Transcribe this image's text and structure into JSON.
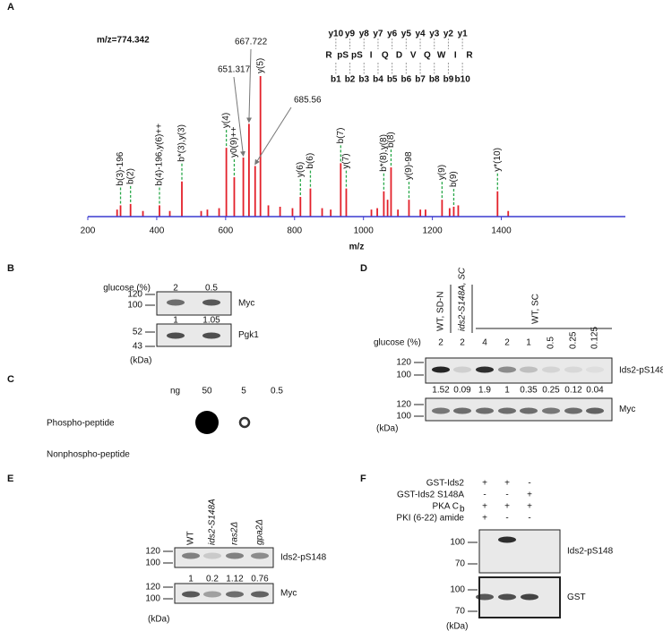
{
  "panel_labels": [
    "A",
    "B",
    "C",
    "D",
    "E",
    "F"
  ],
  "chart_data": {
    "type": "bar",
    "annotation": "m/z=774.342",
    "x_label": "m/z",
    "xlim": [
      200,
      1760
    ],
    "xticks": [
      200,
      400,
      600,
      800,
      1000,
      1200,
      1400
    ],
    "ylim": [
      0,
      100
    ],
    "color": "#e3202a",
    "axis_color": "#3a3acf",
    "label_line_color": "#2aa84a",
    "x": [
      285,
      295,
      324,
      360,
      408,
      438,
      473,
      529,
      547,
      581,
      602,
      625,
      651.317,
      667.722,
      685.56,
      701,
      724,
      758,
      794,
      817,
      846,
      880,
      905,
      934,
      950,
      1023,
      1040,
      1059,
      1070,
      1080,
      1100,
      1132,
      1165,
      1180,
      1228,
      1250,
      1262,
      1275,
      1389,
      1420
    ],
    "values": [
      5,
      8,
      9,
      4,
      8,
      4,
      25,
      4,
      5,
      6,
      49,
      28,
      42,
      66,
      36,
      100,
      8,
      7,
      6,
      14,
      20,
      6,
      5,
      38,
      20,
      5,
      6,
      18,
      12,
      35,
      5,
      12,
      5,
      5,
      12,
      6,
      7,
      8,
      18,
      4
    ],
    "peak_labels": [
      {
        "x": 295,
        "label": "b(3)-196"
      },
      {
        "x": 324,
        "label": "b(2)"
      },
      {
        "x": 408,
        "label": "b(4)-196,y(6)++"
      },
      {
        "x": 473,
        "label": "b*(3),y(3)"
      },
      {
        "x": 602,
        "label": "y(4)"
      },
      {
        "x": 625,
        "label": "y0(9)++"
      },
      {
        "x": 701,
        "label": "y(5)"
      },
      {
        "x": 817,
        "label": "y(6)"
      },
      {
        "x": 846,
        "label": "b(6)"
      },
      {
        "x": 934,
        "label": "b(7)"
      },
      {
        "x": 950,
        "label": "y(7)"
      },
      {
        "x": 1059,
        "label": "b*(8),y(8)"
      },
      {
        "x": 1080,
        "label": "b(8)"
      },
      {
        "x": 1132,
        "label": "y(9)-98"
      },
      {
        "x": 1228,
        "label": "y(9)"
      },
      {
        "x": 1262,
        "label": "b(9)"
      },
      {
        "x": 1389,
        "label": "y*(10)"
      }
    ],
    "callouts": [
      651.317,
      667.722,
      685.56
    ]
  },
  "sequence": {
    "residues": [
      {
        "text": "R",
        "color": "#000000"
      },
      {
        "text": "pS",
        "color": "#e3202a"
      },
      {
        "text": "pS",
        "color": "#e3202a"
      },
      {
        "text": "I",
        "color": "#000000"
      },
      {
        "text": "Q",
        "color": "#000000"
      },
      {
        "text": "D",
        "color": "#000000"
      },
      {
        "text": "V",
        "color": "#000000"
      },
      {
        "text": "Q",
        "color": "#000000"
      },
      {
        "text": "W",
        "color": "#000000"
      },
      {
        "text": "I",
        "color": "#000000"
      },
      {
        "text": "R",
        "color": "#000000"
      }
    ],
    "y_ions": [
      "y10",
      "y9",
      "y8",
      "y7",
      "y6",
      "y5",
      "y4",
      "y3",
      "y2",
      "y1"
    ],
    "y_observed": [
      true,
      true,
      true,
      true,
      true,
      true,
      true,
      true,
      false,
      false
    ],
    "b_ions": [
      "b1",
      "b2",
      "b3",
      "b4",
      "b5",
      "b6",
      "b7",
      "b8",
      "b9",
      "b10"
    ],
    "b_observed": [
      false,
      true,
      true,
      true,
      false,
      true,
      true,
      true,
      true,
      false
    ]
  },
  "panel_b": {
    "variable_label": "glucose (%)",
    "lanes": [
      2,
      0.5
    ],
    "unit": "(kDa)",
    "blots": [
      {
        "markers": [
          120,
          100
        ],
        "target": "Myc",
        "quantification": [
          1,
          1.05
        ]
      },
      {
        "markers": [
          52,
          43
        ],
        "target": "Pgk1"
      }
    ]
  },
  "panel_c": {
    "unit_label": "ng",
    "amounts": [
      50,
      5,
      0.5
    ],
    "rows": [
      "Phospho-peptide",
      "Nonphospho-peptide"
    ]
  },
  "panel_d": {
    "lane_groups": [
      "WT, SD-N",
      "ids2-S148A, SC",
      "WT, SC"
    ],
    "variable_label": "glucose (%)",
    "lanes": [
      2,
      2,
      4,
      2,
      1,
      0.5,
      0.25,
      0.125
    ],
    "unit": "(kDa)",
    "blots": [
      {
        "markers": [
          120,
          100
        ],
        "target": "Ids2-pS148",
        "quantification": [
          1.52,
          0.09,
          1.9,
          1,
          0.35,
          0.25,
          0.12,
          0.04
        ]
      },
      {
        "markers": [
          120,
          100
        ],
        "target": "Myc"
      }
    ]
  },
  "panel_e": {
    "lanes": [
      "WT",
      "ids2-S148A",
      "ras2Δ",
      "gpa2Δ"
    ],
    "unit": "(kDa)",
    "blots": [
      {
        "markers": [
          120,
          100
        ],
        "target": "Ids2-pS148",
        "quantification": [
          1,
          0.2,
          1.12,
          0.76
        ]
      },
      {
        "markers": [
          120,
          100
        ],
        "target": "Myc"
      }
    ]
  },
  "panel_f": {
    "rows": [
      {
        "label": "GST-Ids2",
        "signs": [
          "+",
          "+",
          "-"
        ]
      },
      {
        "label": "GST-Ids2 S148A",
        "signs": [
          "-",
          "-",
          "+"
        ]
      },
      {
        "label": "PKA C",
        "subscript": "b",
        "signs": [
          "+",
          "+",
          "+"
        ]
      },
      {
        "label": "PKI (6-22) amide",
        "signs": [
          "+",
          "-",
          "-"
        ]
      }
    ],
    "unit": "(kDa)",
    "blots": [
      {
        "markers": [
          100,
          70
        ],
        "target": "Ids2-pS148"
      },
      {
        "markers": [
          100,
          70
        ],
        "target": "GST"
      }
    ]
  }
}
